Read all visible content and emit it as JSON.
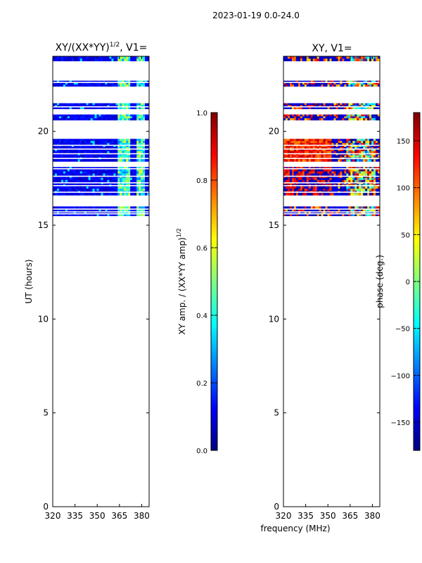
{
  "suptitle": "2023-01-19 0.0-24.0",
  "colors": {
    "background": "#ffffff",
    "flagged": "#ffffff",
    "axis": "#000000",
    "jet": [
      "#00007f",
      "#0000ff",
      "#007fff",
      "#00ffff",
      "#7fff7f",
      "#ffff00",
      "#ff7f00",
      "#ff0000",
      "#7f0000"
    ]
  },
  "chart_data": [
    {
      "type": "heatmap",
      "name": "amplitude-ratio",
      "title_main": "XY/(XX*YY)",
      "title_sup": "1/2",
      "title_tail": ", V1=",
      "xlabel": "",
      "ylabel": "UT (hours)",
      "xlim": [
        320,
        385
      ],
      "ylim": [
        0,
        24
      ],
      "xticks": [
        320,
        335,
        350,
        365,
        380
      ],
      "yticks": [
        0,
        5,
        10,
        15,
        20
      ],
      "data_rows_ut": [
        [
          15.5,
          16.0
        ],
        [
          16.6,
          18.1
        ],
        [
          18.4,
          19.6
        ],
        [
          20.6,
          20.9
        ],
        [
          21.2,
          21.5
        ],
        [
          22.4,
          22.7
        ],
        [
          23.75,
          24.0
        ]
      ],
      "flag_lines_ut": [
        15.6,
        15.7,
        15.85,
        16.75,
        17.1,
        17.25,
        17.6,
        18.0,
        18.55,
        18.8,
        19.05,
        19.25,
        21.3,
        22.6
      ],
      "bright_channels_mhz": [
        [
          363,
          372
        ],
        [
          376,
          381
        ]
      ],
      "colorbar": {
        "label_main": "XY amp. / (XX*YY amp)",
        "label_sup": "1/2",
        "range": [
          0.0,
          1.0
        ],
        "ticks": [
          "0.0",
          "0.2",
          "0.4",
          "0.6",
          "0.8",
          "1.0"
        ]
      }
    },
    {
      "type": "heatmap",
      "name": "phase",
      "title_main": "XY, V1=",
      "xlabel": "frequency (MHz)",
      "ylabel": "",
      "xlim": [
        320,
        385
      ],
      "ylim": [
        0,
        24
      ],
      "xticks": [
        320,
        335,
        350,
        365,
        380
      ],
      "yticks": [
        0,
        5,
        10,
        15,
        20
      ],
      "data_rows_ut": [
        [
          15.5,
          16.0
        ],
        [
          16.6,
          18.1
        ],
        [
          18.4,
          19.6
        ],
        [
          20.6,
          20.9
        ],
        [
          21.2,
          21.5
        ],
        [
          22.4,
          22.7
        ],
        [
          23.75,
          24.0
        ]
      ],
      "flag_lines_ut": [
        15.6,
        15.7,
        15.85,
        16.75,
        17.1,
        17.25,
        17.6,
        18.0,
        18.55,
        18.8,
        19.05,
        19.25,
        21.3,
        22.6
      ],
      "colorbar": {
        "label": "phase (deg.)",
        "range": [
          -180,
          180
        ],
        "ticks": [
          "−150",
          "−100",
          "−50",
          "0",
          "50",
          "100",
          "150"
        ],
        "tick_values": [
          -150,
          -100,
          -50,
          0,
          50,
          100,
          150
        ]
      }
    }
  ]
}
